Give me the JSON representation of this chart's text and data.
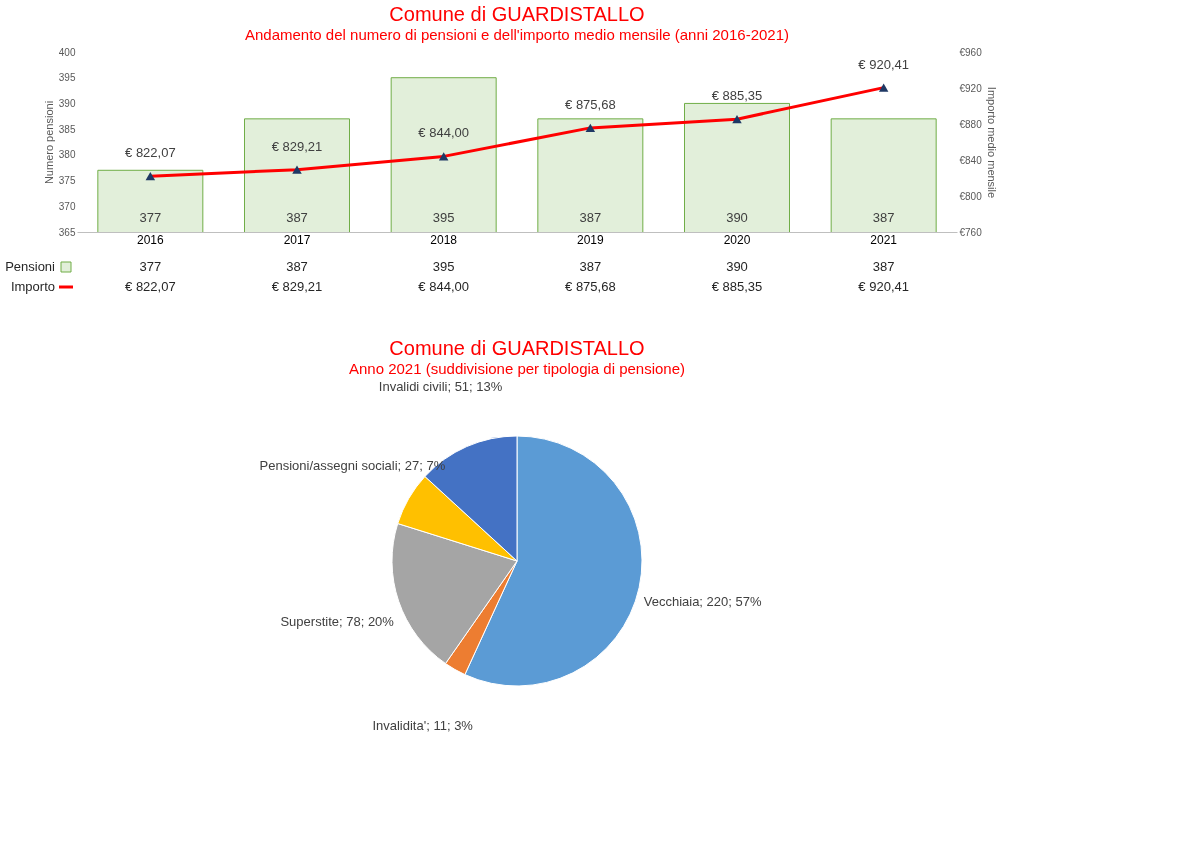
{
  "chart_data": [
    {
      "type": "bar",
      "title": "Comune di GUARDISTALLO",
      "subtitle": "Andamento del numero di pensioni e dell'importo medio mensile (anni 2016-2021)",
      "ylabel": "Numero pensioni",
      "y2label": "Importo medio mensile",
      "categories": [
        "2016",
        "2017",
        "2018",
        "2019",
        "2020",
        "2021"
      ],
      "series": [
        {
          "name": "Pensioni",
          "type": "bar",
          "color": "#e2efda",
          "values": [
            377,
            387,
            395,
            387,
            390,
            387
          ],
          "value_labels": [
            "377",
            "387",
            "395",
            "387",
            "390",
            "387"
          ]
        },
        {
          "name": "Importo",
          "type": "line",
          "axis": "y2",
          "color": "#ff0000",
          "marker": "triangle",
          "values": [
            822.07,
            829.21,
            844.0,
            875.68,
            885.35,
            920.41
          ],
          "value_labels": [
            "€ 822,07",
            "€ 829,21",
            "€ 844,00",
            "€ 875,68",
            "€ 885,35",
            "€ 920,41"
          ]
        }
      ],
      "ylim": [
        365,
        400
      ],
      "yticks": [
        365,
        370,
        375,
        380,
        385,
        390,
        395,
        400
      ],
      "y2lim": [
        760,
        960
      ],
      "y2ticks": [
        {
          "value": 760,
          "label": "€760"
        },
        {
          "value": 800,
          "label": "€800"
        },
        {
          "value": 840,
          "label": "€840"
        },
        {
          "value": 880,
          "label": "€880"
        },
        {
          "value": 920,
          "label": "€920"
        },
        {
          "value": 960,
          "label": "€960"
        }
      ],
      "data_labels": true,
      "grid": false,
      "legend": "bottom left"
    },
    {
      "type": "pie",
      "title": "Comune di GUARDISTALLO",
      "subtitle": "Anno 2021 (suddivisione per tipologia di pensione)",
      "categories": [
        "Vecchiaia",
        "Invalidita'",
        "Superstite",
        "Pensioni/assegni sociali",
        "Invalidi civili"
      ],
      "values": [
        220,
        11,
        78,
        27,
        51
      ],
      "value_labels": [
        "220; 57%",
        "11; 3%",
        "78; 20%",
        "27; 7%",
        "51; 13%"
      ],
      "colors": [
        "#5b9bd5",
        "#ed7d31",
        "#a5a5a5",
        "#ffc000",
        "#4472c4"
      ],
      "legend": false
    }
  ]
}
